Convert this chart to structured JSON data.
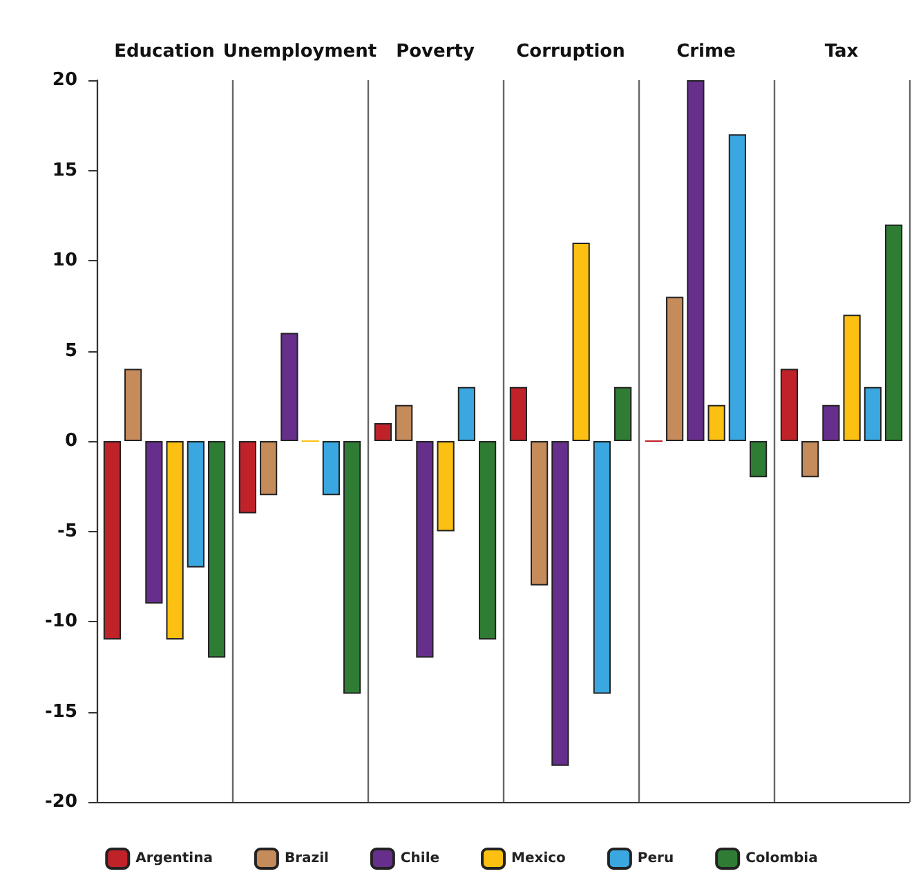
{
  "chart_data": {
    "type": "bar",
    "categories": [
      "Education",
      "Unemployment",
      "Poverty",
      "Corruption",
      "Crime",
      "Tax"
    ],
    "series": [
      {
        "name": "Argentina",
        "color": "#c0222a",
        "values": [
          -11,
          -4,
          1,
          3,
          0,
          4
        ]
      },
      {
        "name": "Brazil",
        "color": "#c58b5b",
        "values": [
          4,
          -3,
          2,
          -8,
          8,
          -2
        ]
      },
      {
        "name": "Chile",
        "color": "#662f8c",
        "values": [
          -9,
          6,
          -12,
          -18,
          20,
          2
        ]
      },
      {
        "name": "Mexico",
        "color": "#fbc012",
        "values": [
          -11,
          0,
          -5,
          11,
          2,
          7
        ]
      },
      {
        "name": "Peru",
        "color": "#3ba7e0",
        "values": [
          -7,
          -3,
          3,
          -14,
          17,
          3
        ]
      },
      {
        "name": "Colombia",
        "color": "#2f7d34",
        "values": [
          -12,
          -14,
          -11,
          3,
          -2,
          12
        ]
      }
    ],
    "ylim": [
      -20,
      20
    ],
    "yticks": [
      -20,
      -15,
      -10,
      -5,
      0,
      5,
      10,
      15,
      20
    ],
    "grid": "x",
    "legend": "bottom"
  }
}
